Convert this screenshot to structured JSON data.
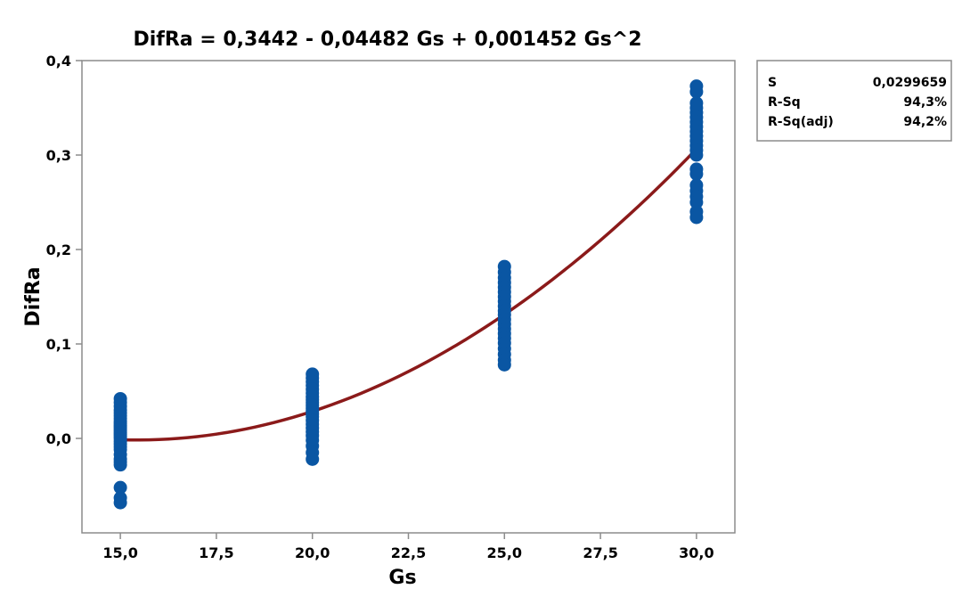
{
  "chart_data": {
    "type": "scatter",
    "title": "DifRa = 0,3442 - 0,04482 Gs + 0,001452 Gs^2",
    "xlabel": "Gs",
    "ylabel": "DifRa",
    "xlim": [
      14.0,
      31.0
    ],
    "ylim": [
      -0.1,
      0.4
    ],
    "x_ticks": [
      15.0,
      17.5,
      20.0,
      22.5,
      25.0,
      27.5,
      30.0
    ],
    "x_tick_labels": [
      "15,0",
      "17,5",
      "20,0",
      "22,5",
      "25,0",
      "27,5",
      "30,0"
    ],
    "y_ticks": [
      0.0,
      0.1,
      0.2,
      0.3,
      0.4
    ],
    "y_tick_labels": [
      "0,0",
      "0,1",
      "0,2",
      "0,3",
      "0,4"
    ],
    "grid": false,
    "fit": {
      "model": "quadratic",
      "coefficients": [
        0.3442,
        -0.04482,
        0.001452
      ],
      "x_range": [
        15.0,
        30.0
      ]
    },
    "points": [
      {
        "x": 15.0,
        "y": [
          0.042,
          0.038,
          0.034,
          0.03,
          0.027,
          0.024,
          0.021,
          0.018,
          0.016,
          0.014,
          0.012,
          0.01,
          0.008,
          0.006,
          0.004,
          0.002,
          0.0,
          -0.003,
          -0.006,
          -0.009,
          -0.012,
          -0.017,
          -0.022,
          -0.025,
          -0.028,
          -0.052,
          -0.063,
          -0.068
        ]
      },
      {
        "x": 20.0,
        "y": [
          0.068,
          0.064,
          0.06,
          0.056,
          0.052,
          0.048,
          0.044,
          0.041,
          0.038,
          0.035,
          0.032,
          0.029,
          0.026,
          0.023,
          0.019,
          0.015,
          0.011,
          0.007,
          0.003,
          -0.002,
          -0.008,
          -0.015,
          -0.022
        ]
      },
      {
        "x": 25.0,
        "y": [
          0.182,
          0.176,
          0.17,
          0.165,
          0.16,
          0.155,
          0.15,
          0.145,
          0.14,
          0.135,
          0.131,
          0.126,
          0.121,
          0.116,
          0.111,
          0.106,
          0.101,
          0.095,
          0.089,
          0.083,
          0.078
        ]
      },
      {
        "x": 30.0,
        "y": [
          0.373,
          0.367,
          0.355,
          0.35,
          0.345,
          0.34,
          0.335,
          0.33,
          0.325,
          0.32,
          0.315,
          0.31,
          0.305,
          0.3,
          0.285,
          0.28,
          0.268,
          0.262,
          0.256,
          0.25,
          0.24,
          0.234
        ]
      }
    ],
    "stats": [
      {
        "label": "S",
        "value": "0,0299659"
      },
      {
        "label": "R-Sq",
        "value": "94,3%"
      },
      {
        "label": "R-Sq(adj)",
        "value": "94,2%"
      }
    ],
    "colors": {
      "points": "#0a56a3",
      "fit_line": "#8b1a1a",
      "axes": "#8c8c8c"
    }
  }
}
